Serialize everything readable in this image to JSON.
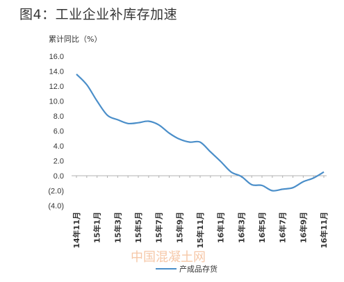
{
  "figure_title": "图4：工业企业补库存加速",
  "watermark": "中国混凝土网",
  "chart_data": {
    "type": "line",
    "ylabel": "累计同比（%）",
    "ylim": [
      -4,
      16
    ],
    "yticks": [
      "16.0",
      "14.0",
      "12.0",
      "10.0",
      "8.0",
      "6.0",
      "4.0",
      "2.0",
      "0.0",
      "(2.0)",
      "(4.0)"
    ],
    "ytick_values": [
      16,
      14,
      12,
      10,
      8,
      6,
      4,
      2,
      0,
      -2,
      -4
    ],
    "grid": false,
    "legend_position": "bottom",
    "xtick_labels": [
      "14年11月",
      "15年1月",
      "15年3月",
      "15年5月",
      "15年7月",
      "15年9月",
      "15年11月",
      "16年1月",
      "16年3月",
      "16年5月",
      "16年7月",
      "16年9月",
      "16年11月"
    ],
    "x": [
      "14年11月",
      "14年12月",
      "15年1月",
      "15年2月",
      "15年3月",
      "15年4月",
      "15年5月",
      "15年6月",
      "15年7月",
      "15年8月",
      "15年9月",
      "15年10月",
      "15年11月",
      "15年12月",
      "16年1月",
      "16年2月",
      "16年3月",
      "16年4月",
      "16年5月",
      "16年6月",
      "16年7月",
      "16年8月",
      "16年9月",
      "16年10月",
      "16年11月"
    ],
    "series": [
      {
        "name": "产成品存货",
        "color": "#4a8ec9",
        "values": [
          13.6,
          12.2,
          10.0,
          8.1,
          7.5,
          7.0,
          7.1,
          7.3,
          6.8,
          5.7,
          4.9,
          4.5,
          4.5,
          3.2,
          1.9,
          0.5,
          -0.1,
          -1.2,
          -1.3,
          -2.0,
          -1.8,
          -1.6,
          -0.8,
          -0.3,
          0.5
        ]
      }
    ]
  }
}
